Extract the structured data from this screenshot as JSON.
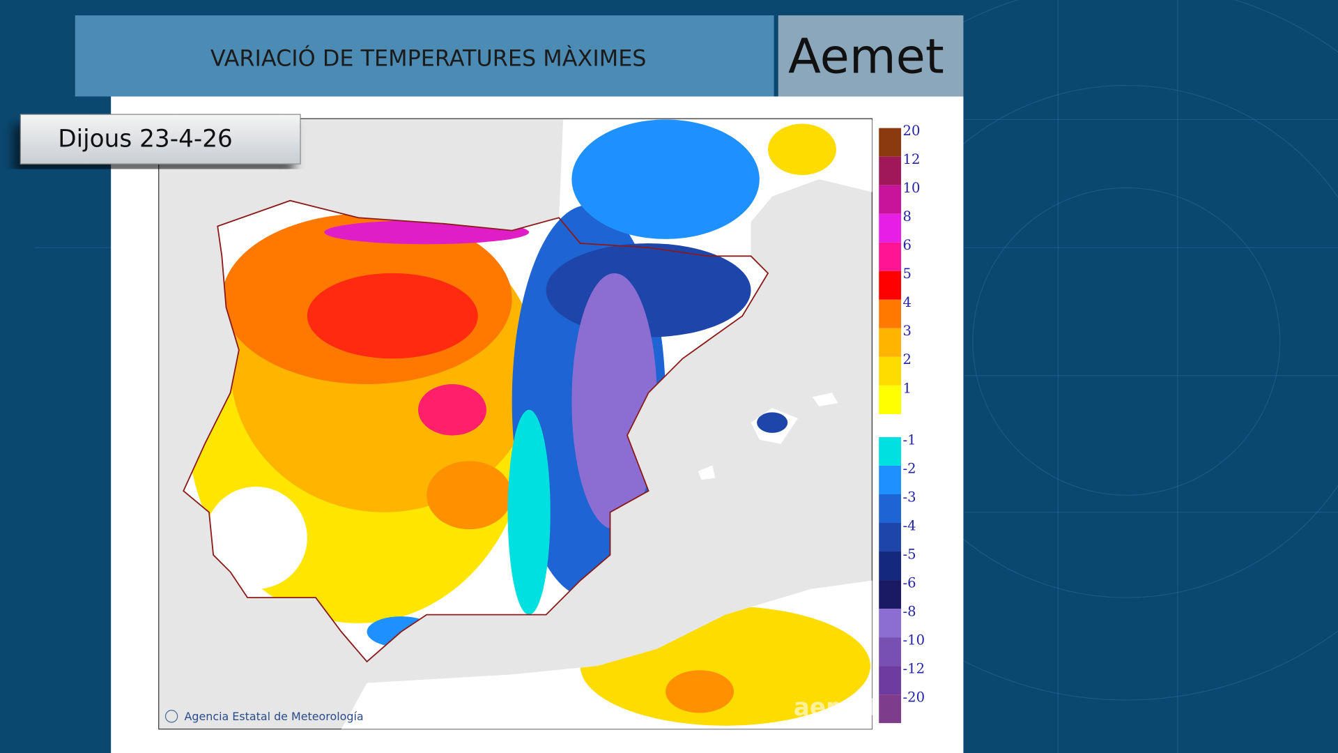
{
  "header": {
    "title": "VARIACIÓ DE TEMPERATURES MÀXIMES",
    "logo": "Aemet"
  },
  "date": "Dijous 23-4-26",
  "map": {
    "credit": "Agencia Estatal de Meteorología",
    "watermark": "aemet"
  },
  "legend": {
    "positive": [
      {
        "label": "20",
        "color": "#8b3a0f"
      },
      {
        "label": "12",
        "color": "#a0185a"
      },
      {
        "label": "10",
        "color": "#c8149b"
      },
      {
        "label": "8",
        "color": "#e61ee6"
      },
      {
        "label": "6",
        "color": "#ff1493"
      },
      {
        "label": "5",
        "color": "#ff0000"
      },
      {
        "label": "4",
        "color": "#ff7800"
      },
      {
        "label": "3",
        "color": "#ffb400"
      },
      {
        "label": "2",
        "color": "#ffdc00"
      },
      {
        "label": "1",
        "color": "#ffff00"
      }
    ],
    "negative": [
      {
        "label": "-1",
        "color": "#00e0e0"
      },
      {
        "label": "-2",
        "color": "#1e90ff"
      },
      {
        "label": "-3",
        "color": "#1e64d2"
      },
      {
        "label": "-4",
        "color": "#1e46aa"
      },
      {
        "label": "-5",
        "color": "#14287d"
      },
      {
        "label": "-6",
        "color": "#1a1a64"
      },
      {
        "label": "-8",
        "color": "#8c6ed2"
      },
      {
        "label": "-10",
        "color": "#7850b4"
      },
      {
        "label": "-12",
        "color": "#6e3ca0"
      },
      {
        "label": "-20",
        "color": "#7d3c8c"
      }
    ]
  }
}
